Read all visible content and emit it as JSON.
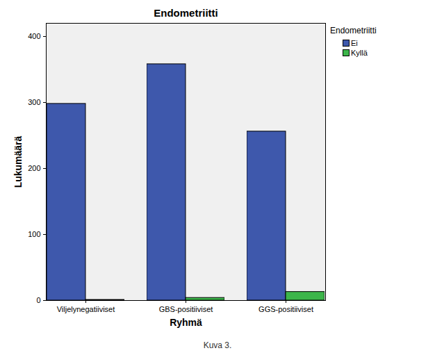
{
  "chart_data": {
    "type": "bar",
    "title": "Endometriitti",
    "caption": "Kuva 3.",
    "xlabel": "Ryhmä",
    "ylabel": "Lukumäärä",
    "categories": [
      "Viljelynegatiiviset",
      "GBS-positiiviset",
      "GGS-positiiviset"
    ],
    "series": [
      {
        "name": "Ei",
        "color": "#3e58ac",
        "values": [
          298,
          358,
          256
        ]
      },
      {
        "name": "Kyllä",
        "color": "#3cb54a",
        "values": [
          1,
          4,
          13
        ]
      }
    ],
    "legend_title": "Endometriitti",
    "legend": "right",
    "ylim": [
      0,
      420
    ],
    "yticks": [
      0,
      100,
      200,
      300,
      400
    ],
    "grid": false
  }
}
